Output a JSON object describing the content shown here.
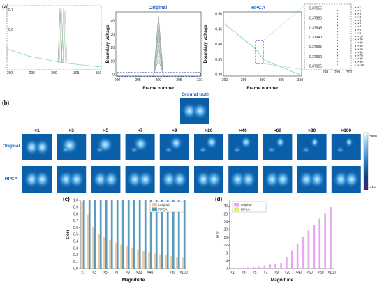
{
  "panel_a": {
    "label": "(a)",
    "inset": {
      "y_ticks": [
        "0.6",
        "0.7"
      ],
      "x_ticks": [
        "290",
        "295",
        "300",
        "305",
        "310"
      ],
      "curve_y_at_290": 0.44
    },
    "original": {
      "title": "Original",
      "xlabel": "Frame number",
      "ylabel": "Boundary voltage",
      "y_ticks": [
        "0",
        "10",
        "20",
        "30",
        "40"
      ],
      "x_ticks": [
        "290",
        "295",
        "300",
        "305",
        "310"
      ]
    },
    "rpca": {
      "title": "RPCA",
      "xlabel": "Frame number",
      "ylabel": "Boundary voltage",
      "y_ticks": [
        "0.30",
        "0.35",
        "0.40",
        "0.45",
        "0.50"
      ],
      "x_ticks": [
        "290",
        "295",
        "300",
        "305",
        "310"
      ]
    },
    "zoom": {
      "y_ticks": [
        "0.37925",
        "0.37930",
        "0.37935",
        "0.37940",
        "0.37945",
        "0.37950",
        "0.37955"
      ],
      "x_ticks": [
        "298",
        "299",
        "300"
      ]
    },
    "legend": [
      "×1",
      "×2",
      "×3",
      "×4",
      "×5",
      "×6",
      "×7",
      "×8",
      "×9",
      "×10",
      "×20",
      "×30",
      "×40",
      "×50",
      "×60",
      "×70",
      "×80",
      "×90",
      "×100"
    ],
    "legend_colors": [
      "#1f77b4",
      "#ff7f0e",
      "#2ca02c",
      "#d62728",
      "#9467bd",
      "#8c564b",
      "#e377c2",
      "#7f7f7f",
      "#bcbd22",
      "#17becf",
      "#1f77b4",
      "#ff7f0e",
      "#2ca02c",
      "#d62728",
      "#9467bd",
      "#8c564b",
      "#e377c2",
      "#7f7f7f",
      "#bcbd22"
    ]
  },
  "panel_b": {
    "label": "(b)",
    "ground_truth": "Ground truth",
    "row_labels": [
      "Original",
      "RPCA"
    ],
    "columns": [
      "×1",
      "×3",
      "×5",
      "×7",
      "×9",
      "×20",
      "×40",
      "×60",
      "×80",
      "×100"
    ],
    "colorbar": {
      "max": "+Max",
      "min": "-Max"
    }
  },
  "chart_data": [
    {
      "type": "bar",
      "panel": "(c)",
      "xlabel": "Magnitude",
      "ylabel": "Corr",
      "ylim": [
        0,
        1.0
      ],
      "y_ticks": [
        "0.0",
        "0.1",
        "0.2",
        "0.3",
        "0.4",
        "0.5",
        "0.6",
        "0.7",
        "0.8",
        "0.9",
        "1.0"
      ],
      "x_tick_labels": [
        "×1",
        "×3",
        "×5",
        "×7",
        "×9",
        "×20",
        "×40",
        "×80",
        "×100"
      ],
      "categories": [
        "×1",
        "×2",
        "×3",
        "×4",
        "×5",
        "×6",
        "×7",
        "×8",
        "×9",
        "×10",
        "×20",
        "×30",
        "×40",
        "×50",
        "×60",
        "×70",
        "×80",
        "×90",
        "×100"
      ],
      "series": [
        {
          "name": "Original",
          "color": "#f3c9a3",
          "values": [
            0.98,
            0.79,
            0.6,
            0.51,
            0.46,
            0.42,
            0.38,
            0.35,
            0.33,
            0.31,
            0.28,
            0.26,
            0.24,
            0.22,
            0.21,
            0.2,
            0.18,
            0.17,
            0.16
          ]
        },
        {
          "name": "RPCA",
          "color": "#5b9bbd",
          "values": [
            1.0,
            1.0,
            1.0,
            1.0,
            1.0,
            1.0,
            1.0,
            1.0,
            1.0,
            1.0,
            1.0,
            1.0,
            1.0,
            1.0,
            1.0,
            1.0,
            1.0,
            1.0,
            1.0
          ]
        }
      ],
      "legend": "top-right"
    },
    {
      "type": "bar",
      "panel": "(d)",
      "xlabel": "Magnitude",
      "ylabel": "Err",
      "ylim": [
        0,
        35
      ],
      "y_ticks": [
        "0",
        "4",
        "8",
        "12",
        "16",
        "20",
        "24",
        "28",
        "32"
      ],
      "x_tick_labels": [
        "×1",
        "×3",
        "×5",
        "×7",
        "×9",
        "×20",
        "×40",
        "×60",
        "×80",
        "×100"
      ],
      "categories": [
        "×1",
        "×2",
        "×3",
        "×4",
        "×5",
        "×6",
        "×7",
        "×8",
        "×9",
        "×10",
        "×20",
        "×30",
        "×40",
        "×50",
        "×60",
        "×70",
        "×80",
        "×90",
        "×100"
      ],
      "series": [
        {
          "name": "Original",
          "color": "#e6a8f0",
          "values": [
            0.0,
            0.1,
            0.3,
            0.6,
            0.9,
            1.2,
            1.6,
            2.0,
            2.4,
            2.8,
            6.0,
            9.5,
            13.0,
            16.5,
            19.5,
            22.5,
            25.5,
            28.5,
            31.5
          ]
        },
        {
          "name": "RPCA",
          "color": "#d8ee7a",
          "values": [
            0,
            0,
            0,
            0,
            0,
            0,
            0,
            0,
            0,
            0,
            0,
            0,
            0,
            0,
            0,
            0,
            0,
            0,
            0
          ]
        }
      ],
      "legend": "top-left"
    }
  ]
}
